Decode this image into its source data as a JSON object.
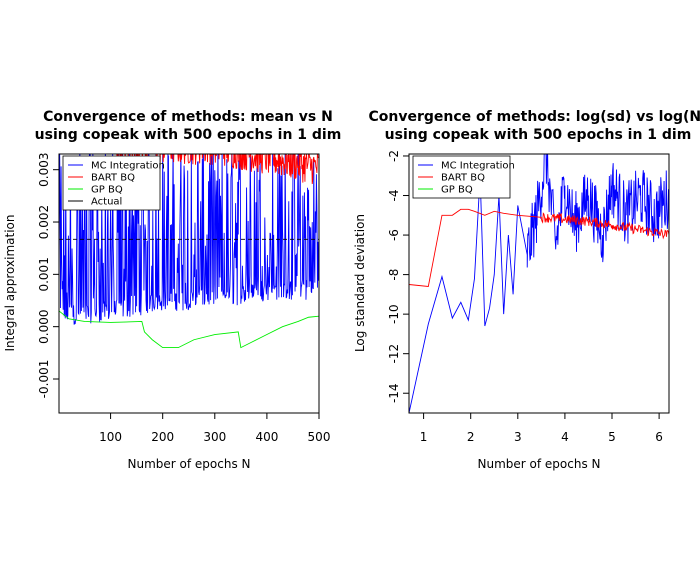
{
  "chart_data": [
    {
      "type": "line",
      "title_line1": "Convergence of methods: mean vs N",
      "title_line2": "using copeak with 500 epochs in 1 dim",
      "xlabel": "Number of epochs N",
      "ylabel": "Integral approximation",
      "xlim": [
        1,
        500
      ],
      "ylim": [
        -0.00165,
        0.0033
      ],
      "xticks": [
        100,
        200,
        300,
        400,
        500
      ],
      "xtick_labels": [
        "100",
        "200",
        "300",
        "400",
        "500"
      ],
      "yticks": [
        -0.001,
        0.0,
        0.001,
        0.002,
        0.003
      ],
      "ytick_labels": [
        "-0.001",
        "0.000",
        "0.001",
        "0.002",
        "0.003"
      ],
      "legend_position": "top-left",
      "legend": [
        "MC Integration",
        "BART BQ",
        "GP BQ",
        "Actual"
      ],
      "colors": {
        "MC Integration": "#0000ff",
        "BART BQ": "#ff0000",
        "GP BQ": "#00ee00",
        "Actual": "#000000"
      },
      "series": [
        {
          "name": "MC Integration",
          "note": "oscillates between about 0.0 and above 0.0033",
          "x": [
            1,
            50,
            100,
            150,
            200,
            250,
            300,
            350,
            400,
            450,
            500
          ],
          "y_low": [
            0.0,
            5e-05,
            0.0001,
            0.0002,
            0.0003,
            0.0003,
            0.0004,
            0.0004,
            0.0005,
            0.0005,
            0.0005
          ],
          "y_high": [
            0.0033,
            0.0033,
            0.0033,
            0.0033,
            0.0033,
            0.0033,
            0.0033,
            0.0033,
            0.0033,
            0.0033,
            0.0033
          ]
        },
        {
          "name": "BART BQ",
          "x": [
            100,
            150,
            200,
            250,
            300,
            350,
            400,
            450,
            500
          ],
          "y": [
            0.0033,
            0.0033,
            0.0033,
            0.0033,
            0.0033,
            0.0032,
            0.0031,
            0.003,
            0.0029
          ]
        },
        {
          "name": "GP BQ",
          "x": [
            1,
            20,
            50,
            100,
            160,
            165,
            180,
            200,
            230,
            260,
            300,
            345,
            350,
            370,
            400,
            430,
            460,
            480,
            500
          ],
          "y": [
            0.0003,
            0.00015,
            0.0001,
            8e-05,
            0.0001,
            -0.0001,
            -0.00025,
            -0.0004,
            -0.0004,
            -0.00025,
            -0.00015,
            -0.0001,
            -0.0004,
            -0.0003,
            -0.00015,
            0.0,
            0.0001,
            0.00018,
            0.0002
          ]
        },
        {
          "name": "Actual",
          "style": "dashed",
          "x": [
            1,
            500
          ],
          "y": [
            0.00167,
            0.00167
          ]
        }
      ]
    },
    {
      "type": "line",
      "title_line1": "Convergence of methods: log(sd) vs log(N)",
      "title_line2": "using copeak with 500 epochs in 1 dim",
      "xlabel": "Number of epochs N",
      "ylabel": "Log standard deviation",
      "xlim": [
        0.69,
        6.21
      ],
      "ylim": [
        -15,
        -1.9
      ],
      "xticks": [
        1,
        2,
        3,
        4,
        5,
        6
      ],
      "xtick_labels": [
        "1",
        "2",
        "3",
        "4",
        "5",
        "6"
      ],
      "yticks": [
        -14,
        -12,
        -10,
        -8,
        -6,
        -4,
        -2
      ],
      "ytick_labels": [
        "-14",
        "-12",
        "-10",
        "-8",
        "-6",
        "-4",
        "-2"
      ],
      "legend_position": "top-left",
      "legend": [
        "MC Integration",
        "BART BQ",
        "GP BQ"
      ],
      "colors": {
        "MC Integration": "#0000ff",
        "BART BQ": "#ff0000",
        "GP BQ": "#00ee00"
      },
      "series": [
        {
          "name": "MC Integration",
          "x": [
            0.69,
            1.1,
            1.39,
            1.61,
            1.79,
            1.95,
            2.08,
            2.2,
            2.3,
            2.4,
            2.5,
            2.6,
            2.7,
            2.8,
            2.9,
            3.0,
            3.2,
            3.4,
            3.6,
            3.8,
            4.0,
            4.2,
            4.5,
            4.8,
            5.0,
            5.3,
            5.6,
            5.9,
            6.21
          ],
          "y": [
            -15,
            -10.5,
            -8.1,
            -10.2,
            -9.4,
            -10.3,
            -8.2,
            -3.0,
            -10.6,
            -9.7,
            -8.0,
            -4.0,
            -10.0,
            -6.0,
            -9.0,
            -4.5,
            -7.0,
            -5.0,
            -2.0,
            -6.5,
            -3.5,
            -5.5,
            -4.0,
            -6.0,
            -3.5,
            -5.0,
            -4.0,
            -5.0,
            -4.0
          ]
        },
        {
          "name": "BART BQ",
          "x": [
            0.69,
            1.1,
            1.39,
            1.61,
            1.79,
            1.95,
            2.08,
            2.3,
            2.5,
            2.7,
            3.0,
            3.5,
            4.0,
            4.5,
            5.0,
            5.5,
            6.0,
            6.21
          ],
          "y": [
            -8.5,
            -8.6,
            -5.0,
            -5.0,
            -4.7,
            -4.7,
            -4.8,
            -5.0,
            -4.8,
            -4.9,
            -5.0,
            -5.1,
            -5.2,
            -5.3,
            -5.5,
            -5.7,
            -5.9,
            -6.0
          ]
        },
        {
          "name": "GP BQ",
          "x": [],
          "y": []
        }
      ]
    }
  ]
}
